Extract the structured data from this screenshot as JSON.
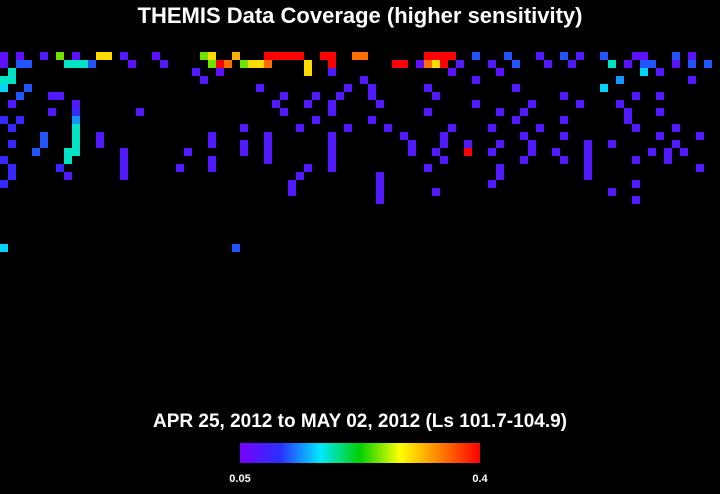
{
  "chart_data": {
    "type": "heatmap",
    "title": "THEMIS Data Coverage (higher sensitivity)",
    "subtitle": "APR 25, 2012 to MAY 02, 2012 (Ls 101.7-104.9)",
    "clim": [
      0.05,
      0.4
    ],
    "cticks": [
      0.05,
      0.4
    ],
    "colormap": [
      "#7a00ff",
      "#2a30ff",
      "#00e8ff",
      "#00d000",
      "#ffff00",
      "#ff8000",
      "#ff0000"
    ],
    "cells": [
      [
        0,
        0,
        0.07
      ],
      [
        2,
        0,
        0.07
      ],
      [
        5,
        0,
        0.08
      ],
      [
        7,
        0,
        0.25
      ],
      [
        9,
        0,
        0.07
      ],
      [
        12,
        0,
        0.3
      ],
      [
        13,
        0,
        0.3
      ],
      [
        15,
        0,
        0.08
      ],
      [
        19,
        0,
        0.07
      ],
      [
        25,
        0,
        0.25
      ],
      [
        26,
        0,
        0.3
      ],
      [
        29,
        0,
        0.32
      ],
      [
        33,
        0,
        0.4
      ],
      [
        34,
        0,
        0.4
      ],
      [
        35,
        0,
        0.4
      ],
      [
        36,
        0,
        0.4
      ],
      [
        37,
        0,
        0.4
      ],
      [
        40,
        0,
        0.4
      ],
      [
        41,
        0,
        0.4
      ],
      [
        44,
        0,
        0.35
      ],
      [
        45,
        0,
        0.35
      ],
      [
        53,
        0,
        0.4
      ],
      [
        54,
        0,
        0.4
      ],
      [
        55,
        0,
        0.4
      ],
      [
        56,
        0,
        0.4
      ],
      [
        59,
        0,
        0.12
      ],
      [
        63,
        0,
        0.12
      ],
      [
        67,
        0,
        0.08
      ],
      [
        70,
        0,
        0.12
      ],
      [
        72,
        0,
        0.08
      ],
      [
        75,
        0,
        0.12
      ],
      [
        79,
        0,
        0.07
      ],
      [
        80,
        0,
        0.07
      ],
      [
        84,
        0,
        0.12
      ],
      [
        86,
        0,
        0.07
      ],
      [
        0,
        1,
        0.07
      ],
      [
        2,
        1,
        0.12
      ],
      [
        3,
        1,
        0.12
      ],
      [
        8,
        1,
        0.18
      ],
      [
        9,
        1,
        0.18
      ],
      [
        10,
        1,
        0.18
      ],
      [
        11,
        1,
        0.12
      ],
      [
        16,
        1,
        0.07
      ],
      [
        20,
        1,
        0.08
      ],
      [
        26,
        1,
        0.25
      ],
      [
        27,
        1,
        0.4
      ],
      [
        28,
        1,
        0.35
      ],
      [
        30,
        1,
        0.25
      ],
      [
        31,
        1,
        0.3
      ],
      [
        32,
        1,
        0.3
      ],
      [
        33,
        1,
        0.35
      ],
      [
        38,
        1,
        0.3
      ],
      [
        41,
        1,
        0.4
      ],
      [
        49,
        1,
        0.4
      ],
      [
        50,
        1,
        0.4
      ],
      [
        52,
        1,
        0.07
      ],
      [
        53,
        1,
        0.35
      ],
      [
        54,
        1,
        0.3
      ],
      [
        55,
        1,
        0.4
      ],
      [
        57,
        1,
        0.08
      ],
      [
        61,
        1,
        0.08
      ],
      [
        64,
        1,
        0.12
      ],
      [
        68,
        1,
        0.08
      ],
      [
        71,
        1,
        0.08
      ],
      [
        76,
        1,
        0.18
      ],
      [
        78,
        1,
        0.07
      ],
      [
        80,
        1,
        0.12
      ],
      [
        81,
        1,
        0.12
      ],
      [
        84,
        1,
        0.07
      ],
      [
        86,
        1,
        0.12
      ],
      [
        88,
        1,
        0.12
      ],
      [
        1,
        2,
        0.18
      ],
      [
        24,
        2,
        0.08
      ],
      [
        27,
        2,
        0.07
      ],
      [
        38,
        2,
        0.3
      ],
      [
        41,
        2,
        0.08
      ],
      [
        56,
        2,
        0.07
      ],
      [
        62,
        2,
        0.07
      ],
      [
        80,
        2,
        0.16
      ],
      [
        82,
        2,
        0.08
      ],
      [
        0,
        3,
        0.18
      ],
      [
        1,
        3,
        0.18
      ],
      [
        25,
        3,
        0.08
      ],
      [
        45,
        3,
        0.08
      ],
      [
        59,
        3,
        0.08
      ],
      [
        77,
        3,
        0.14
      ],
      [
        86,
        3,
        0.08
      ],
      [
        0,
        4,
        0.16
      ],
      [
        3,
        4,
        0.12
      ],
      [
        32,
        4,
        0.08
      ],
      [
        43,
        4,
        0.08
      ],
      [
        46,
        4,
        0.08
      ],
      [
        53,
        4,
        0.08
      ],
      [
        64,
        4,
        0.08
      ],
      [
        75,
        4,
        0.16
      ],
      [
        2,
        5,
        0.12
      ],
      [
        6,
        5,
        0.08
      ],
      [
        7,
        5,
        0.08
      ],
      [
        35,
        5,
        0.08
      ],
      [
        39,
        5,
        0.08
      ],
      [
        42,
        5,
        0.08
      ],
      [
        46,
        5,
        0.08
      ],
      [
        54,
        5,
        0.08
      ],
      [
        70,
        5,
        0.08
      ],
      [
        79,
        5,
        0.08
      ],
      [
        82,
        5,
        0.08
      ],
      [
        1,
        6,
        0.08
      ],
      [
        9,
        6,
        0.08
      ],
      [
        34,
        6,
        0.08
      ],
      [
        38,
        6,
        0.08
      ],
      [
        41,
        6,
        0.08
      ],
      [
        47,
        6,
        0.08
      ],
      [
        59,
        6,
        0.08
      ],
      [
        66,
        6,
        0.08
      ],
      [
        72,
        6,
        0.08
      ],
      [
        77,
        6,
        0.08
      ],
      [
        6,
        7,
        0.08
      ],
      [
        9,
        7,
        0.1
      ],
      [
        17,
        7,
        0.08
      ],
      [
        35,
        7,
        0.08
      ],
      [
        41,
        7,
        0.08
      ],
      [
        53,
        7,
        0.08
      ],
      [
        62,
        7,
        0.08
      ],
      [
        65,
        7,
        0.08
      ],
      [
        78,
        7,
        0.08
      ],
      [
        82,
        7,
        0.08
      ],
      [
        0,
        8,
        0.1
      ],
      [
        2,
        8,
        0.1
      ],
      [
        9,
        8,
        0.14
      ],
      [
        39,
        8,
        0.08
      ],
      [
        46,
        8,
        0.08
      ],
      [
        64,
        8,
        0.08
      ],
      [
        70,
        8,
        0.08
      ],
      [
        78,
        8,
        0.08
      ],
      [
        1,
        9,
        0.1
      ],
      [
        9,
        9,
        0.18
      ],
      [
        30,
        9,
        0.08
      ],
      [
        37,
        9,
        0.08
      ],
      [
        43,
        9,
        0.08
      ],
      [
        48,
        9,
        0.08
      ],
      [
        56,
        9,
        0.08
      ],
      [
        61,
        9,
        0.08
      ],
      [
        67,
        9,
        0.08
      ],
      [
        79,
        9,
        0.08
      ],
      [
        84,
        9,
        0.08
      ],
      [
        5,
        10,
        0.12
      ],
      [
        9,
        10,
        0.18
      ],
      [
        12,
        10,
        0.08
      ],
      [
        26,
        10,
        0.08
      ],
      [
        33,
        10,
        0.08
      ],
      [
        41,
        10,
        0.08
      ],
      [
        50,
        10,
        0.08
      ],
      [
        55,
        10,
        0.08
      ],
      [
        65,
        10,
        0.08
      ],
      [
        70,
        10,
        0.08
      ],
      [
        82,
        10,
        0.08
      ],
      [
        87,
        10,
        0.08
      ],
      [
        1,
        11,
        0.1
      ],
      [
        5,
        11,
        0.12
      ],
      [
        9,
        11,
        0.18
      ],
      [
        12,
        11,
        0.08
      ],
      [
        26,
        11,
        0.08
      ],
      [
        30,
        11,
        0.08
      ],
      [
        33,
        11,
        0.08
      ],
      [
        41,
        11,
        0.08
      ],
      [
        51,
        11,
        0.08
      ],
      [
        55,
        11,
        0.08
      ],
      [
        58,
        11,
        0.08
      ],
      [
        62,
        11,
        0.08
      ],
      [
        66,
        11,
        0.08
      ],
      [
        73,
        11,
        0.08
      ],
      [
        76,
        11,
        0.08
      ],
      [
        84,
        11,
        0.08
      ],
      [
        4,
        12,
        0.12
      ],
      [
        8,
        12,
        0.18
      ],
      [
        9,
        12,
        0.18
      ],
      [
        15,
        12,
        0.08
      ],
      [
        23,
        12,
        0.08
      ],
      [
        30,
        12,
        0.08
      ],
      [
        33,
        12,
        0.08
      ],
      [
        41,
        12,
        0.08
      ],
      [
        51,
        12,
        0.08
      ],
      [
        54,
        12,
        0.08
      ],
      [
        58,
        12,
        0.4
      ],
      [
        61,
        12,
        0.08
      ],
      [
        66,
        12,
        0.08
      ],
      [
        69,
        12,
        0.08
      ],
      [
        73,
        12,
        0.08
      ],
      [
        81,
        12,
        0.08
      ],
      [
        83,
        12,
        0.08
      ],
      [
        85,
        12,
        0.08
      ],
      [
        0,
        13,
        0.1
      ],
      [
        8,
        13,
        0.18
      ],
      [
        15,
        13,
        0.08
      ],
      [
        26,
        13,
        0.08
      ],
      [
        33,
        13,
        0.08
      ],
      [
        41,
        13,
        0.08
      ],
      [
        55,
        13,
        0.08
      ],
      [
        65,
        13,
        0.08
      ],
      [
        70,
        13,
        0.08
      ],
      [
        73,
        13,
        0.08
      ],
      [
        79,
        13,
        0.08
      ],
      [
        83,
        13,
        0.08
      ],
      [
        1,
        14,
        0.1
      ],
      [
        7,
        14,
        0.1
      ],
      [
        15,
        14,
        0.08
      ],
      [
        22,
        14,
        0.08
      ],
      [
        26,
        14,
        0.08
      ],
      [
        38,
        14,
        0.08
      ],
      [
        41,
        14,
        0.08
      ],
      [
        53,
        14,
        0.08
      ],
      [
        62,
        14,
        0.08
      ],
      [
        73,
        14,
        0.08
      ],
      [
        87,
        14,
        0.08
      ],
      [
        1,
        15,
        0.1
      ],
      [
        8,
        15,
        0.08
      ],
      [
        15,
        15,
        0.08
      ],
      [
        37,
        15,
        0.08
      ],
      [
        47,
        15,
        0.08
      ],
      [
        62,
        15,
        0.08
      ],
      [
        73,
        15,
        0.08
      ],
      [
        0,
        16,
        0.1
      ],
      [
        36,
        16,
        0.08
      ],
      [
        47,
        16,
        0.08
      ],
      [
        61,
        16,
        0.08
      ],
      [
        79,
        16,
        0.08
      ],
      [
        36,
        17,
        0.08
      ],
      [
        47,
        17,
        0.08
      ],
      [
        54,
        17,
        0.08
      ],
      [
        76,
        17,
        0.08
      ],
      [
        47,
        18,
        0.08
      ],
      [
        79,
        18,
        0.08
      ],
      [
        0,
        24,
        0.16
      ],
      [
        29,
        24,
        0.12
      ]
    ]
  }
}
